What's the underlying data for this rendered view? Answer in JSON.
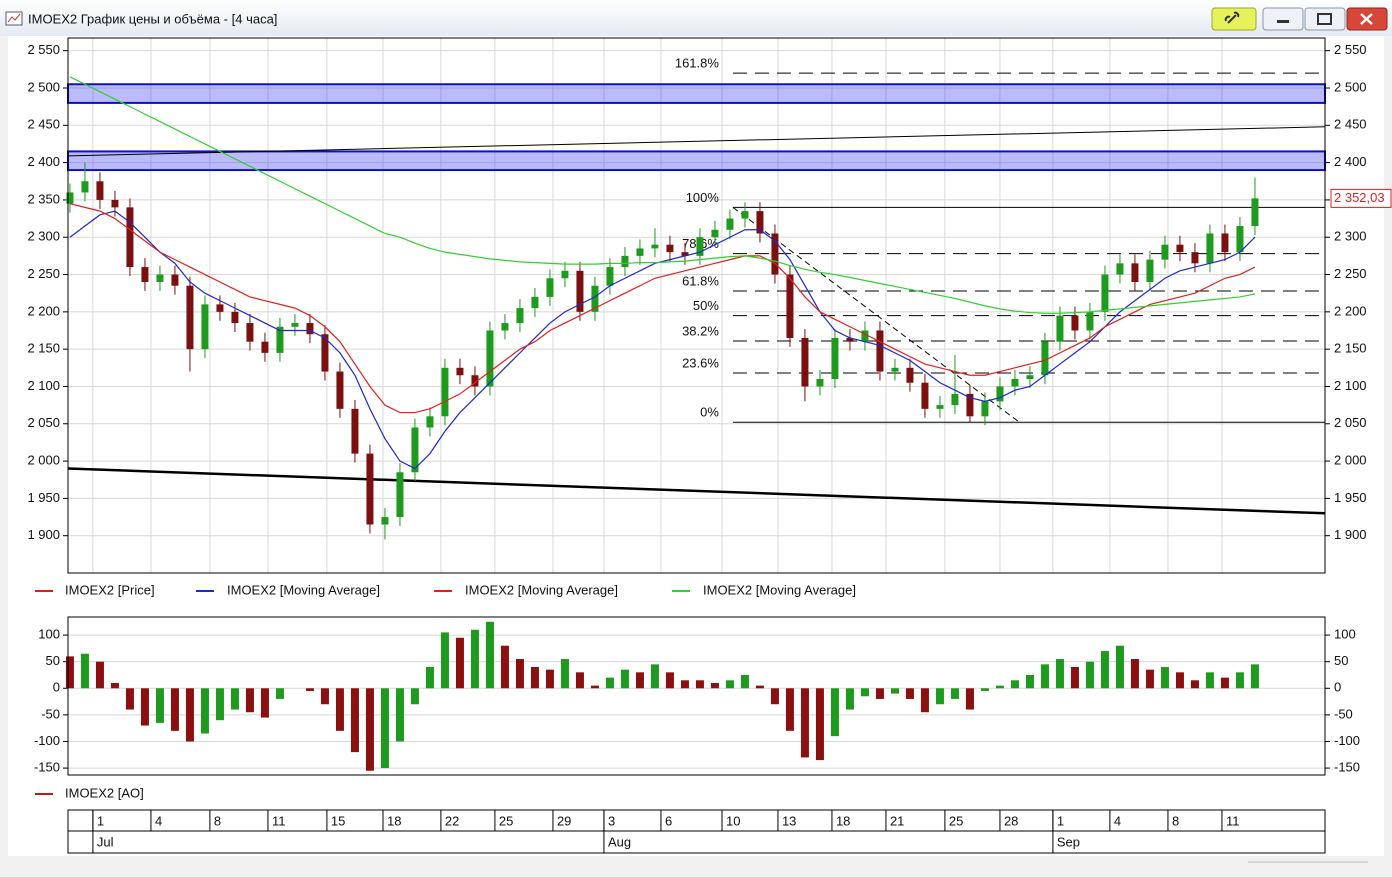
{
  "window": {
    "title": "IMOEX2 График цены и объёма - [4 часа]"
  },
  "chart_data": [
    {
      "type": "candlestick",
      "xlim": [
        -0.13,
        83.67
      ],
      "ylim": [
        1850,
        2567
      ],
      "grid": true,
      "yticks": [
        {
          "value": 2550,
          "label": "2 550"
        },
        {
          "value": 2500,
          "label": "2 500"
        },
        {
          "value": 2450,
          "label": "2 450"
        },
        {
          "value": 2400,
          "label": "2 400"
        },
        {
          "value": 2350,
          "label": "2 350"
        },
        {
          "value": 2300,
          "label": "2 300"
        },
        {
          "value": 2250,
          "label": "2 250"
        },
        {
          "value": 2200,
          "label": "2 200"
        },
        {
          "value": 2150,
          "label": "2 150"
        },
        {
          "value": 2100,
          "label": "2 100"
        },
        {
          "value": 2050,
          "label": "2 050"
        },
        {
          "value": 2000,
          "label": "2 000"
        },
        {
          "value": 1950,
          "label": "1 950"
        },
        {
          "value": 1900,
          "label": "1 900"
        }
      ],
      "xticks": [
        {
          "value": 1.53,
          "label": "1"
        },
        {
          "value": 5.4,
          "label": "4"
        },
        {
          "value": 9.33,
          "label": "8"
        },
        {
          "value": 13.2,
          "label": "11"
        },
        {
          "value": 17.13,
          "label": "15"
        },
        {
          "value": 20.87,
          "label": "18"
        },
        {
          "value": 24.73,
          "label": "22"
        },
        {
          "value": 28.33,
          "label": "25"
        },
        {
          "value": 32.2,
          "label": "29"
        },
        {
          "value": 35.6,
          "label": "3"
        },
        {
          "value": 39.4,
          "label": "6"
        },
        {
          "value": 43.47,
          "label": "10"
        },
        {
          "value": 47.2,
          "label": "13"
        },
        {
          "value": 50.8,
          "label": "18"
        },
        {
          "value": 54.4,
          "label": "21"
        },
        {
          "value": 58.33,
          "label": "25"
        },
        {
          "value": 62,
          "label": "28"
        },
        {
          "value": 65.53,
          "label": "1"
        },
        {
          "value": 69.33,
          "label": "4"
        },
        {
          "value": 73.2,
          "label": "8"
        },
        {
          "value": 76.8,
          "label": "11"
        }
      ],
      "month_ticks": [
        {
          "value": 1.53,
          "label": "Jul"
        },
        {
          "value": 35.6,
          "label": "Aug"
        },
        {
          "value": 65.53,
          "label": "Sep"
        }
      ],
      "last_value_label": "2 352,03",
      "zones": [
        [
          2480,
          2505
        ],
        [
          2390,
          2415
        ]
      ],
      "zone_color": "#3c3cf0",
      "trend_lines": [
        {
          "x": [
            -0.13,
            83.67
          ],
          "y": [
            2409,
            2448
          ],
          "width": 1
        },
        {
          "x": [
            -0.13,
            83.67
          ],
          "y": [
            1990,
            1930
          ],
          "width": 2.5
        },
        {
          "x": [
            44.2,
            63.3
          ],
          "y": [
            2340,
            2052
          ],
          "width": 1,
          "dash": true
        }
      ],
      "fibonacci": {
        "x_start": 44.2,
        "levels": [
          {
            "value": 2520,
            "label": "161.8%"
          },
          {
            "value": 2340,
            "label": "100%"
          },
          {
            "value": 2278,
            "label": "78.6%"
          },
          {
            "value": 2228,
            "label": "61.8%"
          },
          {
            "value": 2195,
            "label": "50%"
          },
          {
            "value": 2161,
            "label": "38.2%"
          },
          {
            "value": 2118,
            "label": "23.6%"
          },
          {
            "value": 2052,
            "label": "0%"
          }
        ]
      },
      "series": [
        {
          "name": "IMOEX2 [Price]",
          "color": "#d02020",
          "up_color": "#1e9a1e",
          "down_color": "#7a1010",
          "open": [
            2345,
            2360,
            2375,
            2350,
            2340,
            2260,
            2240,
            2250,
            2235,
            2150,
            2210,
            2200,
            2185,
            2160,
            2145,
            2180,
            2185,
            2170,
            2120,
            2070,
            2010,
            1915,
            1925,
            1985,
            2045,
            2060,
            2125,
            2115,
            2100,
            2175,
            2185,
            2205,
            2220,
            2245,
            2255,
            2200,
            2235,
            2260,
            2275,
            2285,
            2290,
            2280,
            2275,
            2300,
            2310,
            2325,
            2335,
            2305,
            2250,
            2165,
            2100,
            2110,
            2165,
            2160,
            2175,
            2120,
            2125,
            2105,
            2070,
            2075,
            2090,
            2060,
            2080,
            2100,
            2110,
            2115,
            2160,
            2195,
            2175,
            2200,
            2250,
            2265,
            2240,
            2270,
            2290,
            2280,
            2265,
            2305,
            2280,
            2315
          ],
          "high": [
            2372,
            2400,
            2387,
            2362,
            2352,
            2272,
            2262,
            2262,
            2247,
            2222,
            2222,
            2212,
            2197,
            2172,
            2192,
            2197,
            2197,
            2182,
            2132,
            2082,
            2022,
            1937,
            1997,
            2057,
            2072,
            2137,
            2137,
            2127,
            2187,
            2197,
            2217,
            2232,
            2257,
            2267,
            2267,
            2247,
            2272,
            2287,
            2297,
            2312,
            2302,
            2292,
            2312,
            2322,
            2337,
            2347,
            2347,
            2317,
            2262,
            2177,
            2122,
            2177,
            2177,
            2187,
            2187,
            2137,
            2137,
            2117,
            2087,
            2142,
            2102,
            2092,
            2112,
            2122,
            2127,
            2172,
            2207,
            2207,
            2212,
            2262,
            2277,
            2277,
            2282,
            2302,
            2302,
            2292,
            2317,
            2317,
            2327,
            2380
          ],
          "low": [
            2333,
            2348,
            2338,
            2328,
            2248,
            2228,
            2228,
            2223,
            2120,
            2138,
            2188,
            2173,
            2148,
            2133,
            2133,
            2168,
            2158,
            2108,
            2058,
            1998,
            1903,
            1895,
            1913,
            1973,
            2033,
            2048,
            2103,
            2088,
            2088,
            2163,
            2173,
            2193,
            2208,
            2233,
            2188,
            2188,
            2223,
            2248,
            2263,
            2273,
            2268,
            2263,
            2263,
            2288,
            2298,
            2313,
            2293,
            2238,
            2153,
            2080,
            2088,
            2098,
            2148,
            2148,
            2108,
            2108,
            2093,
            2058,
            2058,
            2063,
            2052,
            2048,
            2068,
            2088,
            2098,
            2103,
            2148,
            2163,
            2163,
            2188,
            2238,
            2228,
            2228,
            2258,
            2268,
            2253,
            2253,
            2268,
            2268,
            2303
          ],
          "close": [
            2360,
            2375,
            2350,
            2340,
            2260,
            2240,
            2250,
            2235,
            2150,
            2210,
            2200,
            2185,
            2160,
            2145,
            2180,
            2185,
            2170,
            2120,
            2070,
            2010,
            1915,
            1925,
            1985,
            2045,
            2060,
            2125,
            2115,
            2100,
            2175,
            2185,
            2205,
            2220,
            2245,
            2255,
            2200,
            2235,
            2260,
            2275,
            2285,
            2290,
            2280,
            2275,
            2300,
            2310,
            2325,
            2335,
            2305,
            2250,
            2165,
            2100,
            2110,
            2165,
            2160,
            2175,
            2120,
            2125,
            2105,
            2070,
            2075,
            2090,
            2060,
            2080,
            2100,
            2110,
            2115,
            2160,
            2195,
            2175,
            2200,
            2250,
            2265,
            2240,
            2270,
            2290,
            2280,
            2265,
            2305,
            2280,
            2315,
            2352.03
          ]
        },
        {
          "name": "IMOEX2 [Moving Average]",
          "color": "#1a2ad0",
          "values": [
            2300,
            2315,
            2330,
            2335,
            2320,
            2300,
            2280,
            2265,
            2240,
            2225,
            2215,
            2205,
            2195,
            2185,
            2175,
            2175,
            2175,
            2165,
            2145,
            2115,
            2070,
            2030,
            2000,
            1990,
            2010,
            2040,
            2065,
            2085,
            2105,
            2125,
            2145,
            2165,
            2185,
            2200,
            2210,
            2220,
            2235,
            2245,
            2255,
            2265,
            2270,
            2275,
            2280,
            2290,
            2300,
            2310,
            2310,
            2295,
            2270,
            2235,
            2200,
            2175,
            2165,
            2160,
            2155,
            2145,
            2135,
            2120,
            2105,
            2095,
            2085,
            2080,
            2085,
            2095,
            2100,
            2115,
            2130,
            2145,
            2160,
            2180,
            2200,
            2215,
            2230,
            2245,
            2255,
            2260,
            2265,
            2270,
            2280,
            2300
          ]
        },
        {
          "name": "IMOEX2 [Moving Average]",
          "color": "#e02020",
          "values": [
            2345,
            2340,
            2335,
            2325,
            2310,
            2295,
            2280,
            2270,
            2260,
            2250,
            2240,
            2230,
            2220,
            2215,
            2210,
            2205,
            2195,
            2180,
            2160,
            2130,
            2100,
            2075,
            2065,
            2065,
            2070,
            2080,
            2090,
            2105,
            2120,
            2135,
            2150,
            2160,
            2175,
            2185,
            2195,
            2205,
            2215,
            2225,
            2235,
            2245,
            2250,
            2255,
            2260,
            2265,
            2270,
            2275,
            2275,
            2265,
            2245,
            2220,
            2200,
            2190,
            2180,
            2170,
            2160,
            2150,
            2140,
            2130,
            2125,
            2120,
            2115,
            2115,
            2120,
            2125,
            2130,
            2135,
            2145,
            2155,
            2165,
            2180,
            2190,
            2200,
            2210,
            2215,
            2220,
            2225,
            2235,
            2245,
            2250,
            2260
          ]
        },
        {
          "name": "IMOEX2 [Moving Average]",
          "color": "#30d030",
          "values": [
            2515,
            2505,
            2495,
            2485,
            2475,
            2465,
            2455,
            2445,
            2435,
            2425,
            2415,
            2405,
            2395,
            2385,
            2375,
            2365,
            2355,
            2345,
            2335,
            2325,
            2315,
            2305,
            2300,
            2292,
            2285,
            2280,
            2277,
            2274,
            2271,
            2269,
            2267,
            2266,
            2265,
            2264,
            2264,
            2264,
            2265,
            2265,
            2266,
            2266,
            2267,
            2268,
            2270,
            2272,
            2274,
            2275,
            2272,
            2268,
            2262,
            2257,
            2253,
            2250,
            2246,
            2242,
            2238,
            2234,
            2230,
            2226,
            2222,
            2218,
            2213,
            2208,
            2204,
            2201,
            2199,
            2198,
            2198,
            2199,
            2200,
            2202,
            2204,
            2206,
            2208,
            2210,
            2212,
            2214,
            2216,
            2218,
            2220,
            2224
          ]
        }
      ]
    },
    {
      "type": "bar",
      "xlim": [
        -0.13,
        83.67
      ],
      "ylim": [
        -163,
        134
      ],
      "yticks": [
        100,
        50,
        0,
        -50,
        -100,
        -150
      ],
      "grid": true,
      "series": [
        {
          "name": "IMOEX2 [AO]",
          "color": "#c01818",
          "up_color": "#1e9a1e",
          "down_color": "#8b1010",
          "values": [
            60,
            65,
            50,
            10,
            -40,
            -70,
            -65,
            -80,
            -100,
            -85,
            -60,
            -40,
            -45,
            -55,
            -20,
            0,
            -5,
            -30,
            -80,
            -120,
            -155,
            -150,
            -100,
            -30,
            40,
            105,
            95,
            110,
            125,
            80,
            55,
            40,
            35,
            55,
            30,
            5,
            20,
            35,
            30,
            45,
            30,
            15,
            15,
            10,
            15,
            25,
            5,
            -30,
            -80,
            -130,
            -135,
            -90,
            -40,
            -15,
            -20,
            -10,
            -20,
            -45,
            -30,
            -20,
            -40,
            -5,
            5,
            15,
            25,
            45,
            55,
            40,
            50,
            70,
            80,
            55,
            35,
            40,
            30,
            15,
            30,
            20,
            30,
            45
          ]
        }
      ]
    }
  ]
}
